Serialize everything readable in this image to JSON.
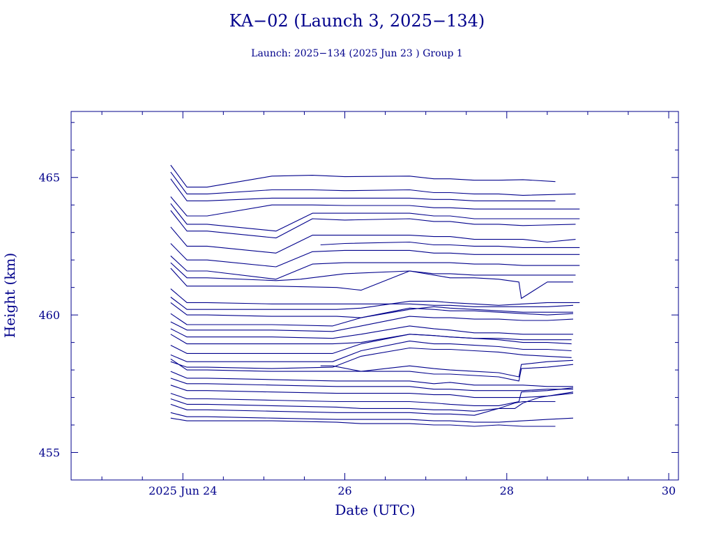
{
  "colors": {
    "ink": "#00008b"
  },
  "chart_data": {
    "type": "line",
    "title": "KA−02 (Launch 3, 2025−134)",
    "subtitle": "Launch: 2025−134  (2025 Jun 23 )  Group 1",
    "xlabel": "Date (UTC)",
    "ylabel": "Height (km)",
    "x_units": "days of June 2025 (UTC)",
    "xlim": [
      22.62,
      30.12
    ],
    "ylim": [
      454,
      467.4
    ],
    "x_major_ticks": [
      24,
      26,
      28,
      30
    ],
    "x_tick_labels": [
      "2025 Jun 24",
      "26",
      "28",
      "30"
    ],
    "y_major_ticks": [
      455,
      460,
      465
    ],
    "y_tick_labels": [
      "455",
      "460",
      "465"
    ],
    "grid": false,
    "legend": "none",
    "series": [
      {
        "x": [
          23.85,
          24.05,
          24.3,
          25.1,
          25.6,
          26.0,
          26.8,
          27.1,
          27.3,
          27.6,
          27.9,
          28.2,
          28.6
        ],
        "y": [
          465.45,
          464.65,
          464.65,
          465.05,
          465.08,
          465.03,
          465.05,
          464.95,
          464.95,
          464.9,
          464.9,
          464.92,
          464.85
        ]
      },
      {
        "x": [
          23.85,
          24.05,
          24.3,
          25.1,
          25.6,
          26.0,
          26.8,
          27.1,
          27.3,
          27.6,
          27.9,
          28.2,
          28.85
        ],
        "y": [
          465.2,
          464.4,
          464.4,
          464.55,
          464.55,
          464.52,
          464.55,
          464.45,
          464.45,
          464.4,
          464.4,
          464.35,
          464.4
        ]
      },
      {
        "x": [
          23.85,
          24.05,
          24.3,
          25.1,
          25.6,
          26.0,
          26.8,
          27.1,
          27.3,
          27.6,
          27.9,
          28.2,
          28.6
        ],
        "y": [
          464.95,
          464.15,
          464.15,
          464.25,
          464.25,
          464.25,
          464.25,
          464.2,
          464.2,
          464.15,
          464.15,
          464.15,
          464.15
        ]
      },
      {
        "x": [
          23.85,
          24.05,
          24.3,
          25.1,
          25.6,
          26.0,
          26.8,
          27.1,
          27.3,
          27.6,
          27.9,
          28.2,
          28.9
        ],
        "y": [
          464.3,
          463.6,
          463.6,
          464.0,
          464.0,
          463.98,
          463.98,
          463.9,
          463.9,
          463.85,
          463.85,
          463.85,
          463.85
        ]
      },
      {
        "x": [
          23.85,
          24.05,
          24.3,
          25.15,
          25.6,
          26.0,
          26.8,
          27.1,
          27.3,
          27.6,
          27.9,
          28.2,
          28.9
        ],
        "y": [
          464.05,
          463.3,
          463.3,
          463.05,
          463.7,
          463.7,
          463.7,
          463.6,
          463.6,
          463.5,
          463.5,
          463.5,
          463.5
        ]
      },
      {
        "x": [
          23.85,
          24.05,
          24.3,
          25.15,
          25.6,
          26.0,
          26.8,
          27.1,
          27.3,
          27.6,
          27.9,
          28.2,
          28.85
        ],
        "y": [
          463.8,
          463.05,
          463.05,
          462.8,
          463.5,
          463.45,
          463.5,
          463.4,
          463.4,
          463.3,
          463.3,
          463.25,
          463.3
        ]
      },
      {
        "x": [
          23.85,
          24.05,
          24.3,
          25.15,
          25.6,
          26.0,
          26.8,
          27.1,
          27.3,
          27.6,
          27.9,
          28.2,
          28.5,
          28.85
        ],
        "y": [
          463.2,
          462.5,
          462.5,
          462.25,
          462.9,
          462.9,
          462.9,
          462.85,
          462.85,
          462.75,
          462.75,
          462.75,
          462.65,
          462.75
        ]
      },
      {
        "x": [
          25.7,
          26.0,
          26.8,
          27.1,
          27.3,
          27.6,
          27.9,
          28.2,
          28.9
        ],
        "y": [
          462.55,
          462.6,
          462.65,
          462.55,
          462.55,
          462.5,
          462.5,
          462.45,
          462.45
        ]
      },
      {
        "x": [
          23.85,
          24.05,
          24.3,
          25.15,
          25.6,
          26.0,
          26.8,
          27.1,
          27.3,
          27.6,
          27.9,
          28.2,
          28.9
        ],
        "y": [
          462.6,
          462.0,
          462.0,
          461.75,
          462.3,
          462.35,
          462.35,
          462.25,
          462.25,
          462.2,
          462.2,
          462.2,
          462.2
        ]
      },
      {
        "x": [
          23.85,
          24.05,
          24.3,
          25.15,
          25.6,
          26.0,
          26.8,
          27.1,
          27.3,
          27.6,
          27.9,
          28.2,
          28.6,
          28.9
        ],
        "y": [
          462.15,
          461.6,
          461.6,
          461.3,
          461.85,
          461.9,
          461.9,
          461.9,
          461.9,
          461.85,
          461.85,
          461.8,
          461.8,
          461.8
        ]
      },
      {
        "x": [
          23.85,
          24.05,
          24.3,
          25.15,
          25.45,
          26.0,
          26.8,
          27.1,
          27.3,
          27.6,
          27.9,
          28.2,
          28.6,
          28.85
        ],
        "y": [
          461.9,
          461.35,
          461.35,
          461.25,
          461.3,
          461.5,
          461.6,
          461.5,
          461.5,
          461.45,
          461.45,
          461.45,
          461.45,
          461.45
        ]
      },
      {
        "x": [
          23.85,
          24.05,
          24.3,
          25.1,
          25.9,
          26.2,
          26.8,
          27.3,
          27.6,
          27.9,
          28.15,
          28.18,
          28.5,
          28.82
        ],
        "y": [
          461.7,
          461.05,
          461.05,
          461.05,
          461.0,
          460.9,
          461.6,
          461.35,
          461.35,
          461.3,
          461.2,
          460.6,
          461.2,
          461.2
        ]
      },
      {
        "x": [
          23.85,
          24.05,
          24.3,
          25.1,
          25.9,
          26.2,
          26.8,
          27.1,
          27.3,
          27.6,
          27.9,
          28.2,
          28.5,
          28.82
        ],
        "y": [
          460.95,
          460.45,
          460.45,
          460.4,
          460.4,
          460.4,
          460.4,
          460.35,
          460.35,
          460.3,
          460.3,
          460.3,
          460.3,
          460.35
        ]
      },
      {
        "x": [
          23.85,
          24.05,
          24.3,
          25.1,
          25.9,
          26.2,
          26.8,
          27.1,
          27.3,
          27.6,
          27.9,
          28.2,
          28.5,
          28.9
        ],
        "y": [
          460.65,
          460.2,
          460.2,
          460.2,
          460.2,
          460.25,
          460.5,
          460.5,
          460.45,
          460.4,
          460.35,
          460.4,
          460.45,
          460.45
        ]
      },
      {
        "x": [
          23.85,
          24.05,
          24.3,
          25.1,
          25.9,
          26.2,
          26.8,
          27.1,
          27.3,
          27.6,
          27.9,
          28.2,
          28.5,
          28.82
        ],
        "y": [
          460.45,
          460.0,
          460.0,
          459.95,
          459.95,
          459.9,
          460.2,
          460.3,
          460.25,
          460.2,
          460.15,
          460.1,
          460.1,
          460.1
        ]
      },
      {
        "x": [
          23.85,
          24.05,
          24.3,
          25.1,
          25.85,
          26.2,
          26.8,
          27.1,
          27.3,
          27.6,
          27.9,
          28.2,
          28.5,
          28.82
        ],
        "y": [
          460.05,
          459.65,
          459.65,
          459.65,
          459.6,
          459.9,
          460.25,
          460.2,
          460.15,
          460.15,
          460.1,
          460.05,
          460.0,
          460.05
        ]
      },
      {
        "x": [
          23.85,
          24.05,
          24.3,
          25.1,
          25.85,
          26.2,
          26.8,
          27.1,
          27.3,
          27.6,
          27.9,
          28.2,
          28.5,
          28.82
        ],
        "y": [
          459.75,
          459.45,
          459.45,
          459.45,
          459.4,
          459.6,
          459.95,
          459.9,
          459.9,
          459.85,
          459.85,
          459.8,
          459.8,
          459.85
        ]
      },
      {
        "x": [
          23.85,
          24.05,
          24.3,
          25.1,
          25.85,
          26.2,
          26.8,
          27.1,
          27.3,
          27.6,
          27.9,
          28.2,
          28.5,
          28.82
        ],
        "y": [
          459.5,
          459.2,
          459.2,
          459.2,
          459.15,
          459.3,
          459.6,
          459.5,
          459.45,
          459.35,
          459.35,
          459.3,
          459.3,
          459.3
        ]
      },
      {
        "x": [
          23.85,
          24.05,
          24.3,
          25.1,
          25.85,
          26.2,
          26.8,
          27.1,
          27.3,
          27.6,
          27.9,
          28.2,
          28.5,
          28.8
        ],
        "y": [
          459.3,
          458.95,
          458.95,
          458.95,
          458.95,
          459.0,
          459.3,
          459.25,
          459.2,
          459.15,
          459.15,
          459.1,
          459.1,
          459.1
        ]
      },
      {
        "x": [
          23.85,
          24.05,
          24.3,
          25.1,
          25.85,
          26.2,
          26.8,
          27.1,
          27.3,
          27.6,
          27.9,
          28.2,
          28.5,
          28.8
        ],
        "y": [
          458.9,
          458.6,
          458.6,
          458.6,
          458.6,
          458.95,
          459.3,
          459.25,
          459.2,
          459.15,
          459.1,
          459.0,
          459.0,
          458.95
        ]
      },
      {
        "x": [
          23.85,
          24.05,
          24.3,
          25.1,
          25.85,
          26.2,
          26.8,
          27.1,
          27.3,
          27.6,
          27.9,
          28.2,
          28.5,
          28.8
        ],
        "y": [
          458.55,
          458.3,
          458.3,
          458.3,
          458.3,
          458.7,
          459.05,
          458.95,
          458.95,
          458.9,
          458.85,
          458.75,
          458.75,
          458.7
        ]
      },
      {
        "x": [
          23.85,
          24.05,
          24.3,
          25.1,
          25.85,
          26.2,
          26.8,
          27.1,
          27.3,
          27.6,
          27.9,
          28.2,
          28.5,
          28.8
        ],
        "y": [
          458.3,
          458.1,
          458.1,
          458.05,
          458.1,
          458.5,
          458.8,
          458.75,
          458.75,
          458.7,
          458.65,
          458.55,
          458.5,
          458.45
        ]
      },
      {
        "x": [
          25.7,
          25.85,
          26.2,
          26.8,
          27.1,
          27.3,
          27.6,
          27.9,
          28.15,
          28.18,
          28.5,
          28.82
        ],
        "y": [
          458.15,
          458.15,
          457.95,
          458.15,
          458.05,
          458.0,
          457.95,
          457.9,
          457.75,
          458.2,
          458.3,
          458.35
        ]
      },
      {
        "x": [
          23.85,
          24.05,
          24.3,
          25.1,
          25.85,
          26.2,
          26.8,
          27.1,
          27.3,
          27.6,
          27.9,
          28.15,
          28.18,
          28.5,
          28.82
        ],
        "y": [
          458.4,
          458.0,
          458.0,
          457.95,
          457.95,
          457.95,
          457.95,
          457.85,
          457.85,
          457.8,
          457.75,
          457.6,
          458.05,
          458.1,
          458.2
        ]
      },
      {
        "x": [
          23.85,
          24.05,
          24.3,
          25.1,
          25.9,
          26.2,
          26.8,
          27.1,
          27.3,
          27.6,
          27.9,
          28.2,
          28.5,
          28.82
        ],
        "y": [
          457.95,
          457.7,
          457.7,
          457.65,
          457.6,
          457.6,
          457.6,
          457.5,
          457.55,
          457.45,
          457.45,
          457.45,
          457.4,
          457.4
        ]
      },
      {
        "x": [
          23.85,
          24.05,
          24.3,
          25.1,
          25.9,
          26.2,
          26.8,
          27.1,
          27.3,
          27.6,
          27.9,
          28.2,
          28.5,
          28.82
        ],
        "y": [
          457.7,
          457.5,
          457.5,
          457.45,
          457.4,
          457.4,
          457.4,
          457.3,
          457.3,
          457.25,
          457.25,
          457.25,
          457.3,
          457.3
        ]
      },
      {
        "x": [
          23.85,
          24.05,
          24.3,
          25.1,
          25.9,
          26.2,
          26.8,
          27.1,
          27.3,
          27.6,
          27.9,
          28.2,
          28.5,
          28.82
        ],
        "y": [
          457.45,
          457.25,
          457.25,
          457.2,
          457.15,
          457.15,
          457.15,
          457.1,
          457.1,
          457.0,
          457.0,
          457.0,
          457.05,
          457.15
        ]
      },
      {
        "x": [
          23.85,
          24.05,
          24.3,
          25.1,
          25.9,
          26.2,
          26.8,
          27.1,
          27.3,
          27.6,
          27.9,
          28.15,
          28.18,
          28.5,
          28.82
        ],
        "y": [
          457.15,
          456.95,
          456.95,
          456.9,
          456.85,
          456.85,
          456.85,
          456.8,
          456.75,
          456.7,
          456.7,
          456.85,
          457.2,
          457.25,
          457.35
        ]
      },
      {
        "x": [
          23.85,
          24.05,
          24.3,
          25.1,
          25.9,
          26.2,
          26.8,
          27.1,
          27.3,
          27.6,
          27.9,
          28.1,
          28.2,
          28.6
        ],
        "y": [
          456.95,
          456.75,
          456.75,
          456.7,
          456.65,
          456.6,
          456.6,
          456.55,
          456.55,
          456.5,
          456.6,
          456.8,
          456.85,
          456.85
        ]
      },
      {
        "x": [
          23.85,
          24.05,
          24.3,
          25.1,
          25.9,
          26.2,
          26.8,
          27.1,
          27.3,
          27.6,
          27.9,
          28.1,
          28.2,
          28.4,
          28.82
        ],
        "y": [
          456.75,
          456.55,
          456.55,
          456.5,
          456.45,
          456.45,
          456.45,
          456.4,
          456.4,
          456.35,
          456.6,
          456.6,
          456.8,
          457.0,
          457.2
        ]
      },
      {
        "x": [
          23.85,
          24.05,
          24.3,
          25.1,
          25.9,
          26.2,
          26.8,
          27.1,
          27.3,
          27.6,
          27.9,
          28.2,
          28.5,
          28.82
        ],
        "y": [
          456.45,
          456.3,
          456.3,
          456.25,
          456.2,
          456.2,
          456.2,
          456.15,
          456.15,
          456.1,
          456.1,
          456.15,
          456.2,
          456.25
        ]
      },
      {
        "x": [
          23.85,
          24.05,
          24.3,
          25.1,
          25.9,
          26.2,
          26.8,
          27.1,
          27.3,
          27.6,
          27.9,
          28.2,
          28.6
        ],
        "y": [
          456.25,
          456.15,
          456.15,
          456.15,
          456.1,
          456.05,
          456.05,
          456.0,
          456.0,
          455.95,
          456.0,
          455.95,
          455.95
        ]
      }
    ]
  }
}
